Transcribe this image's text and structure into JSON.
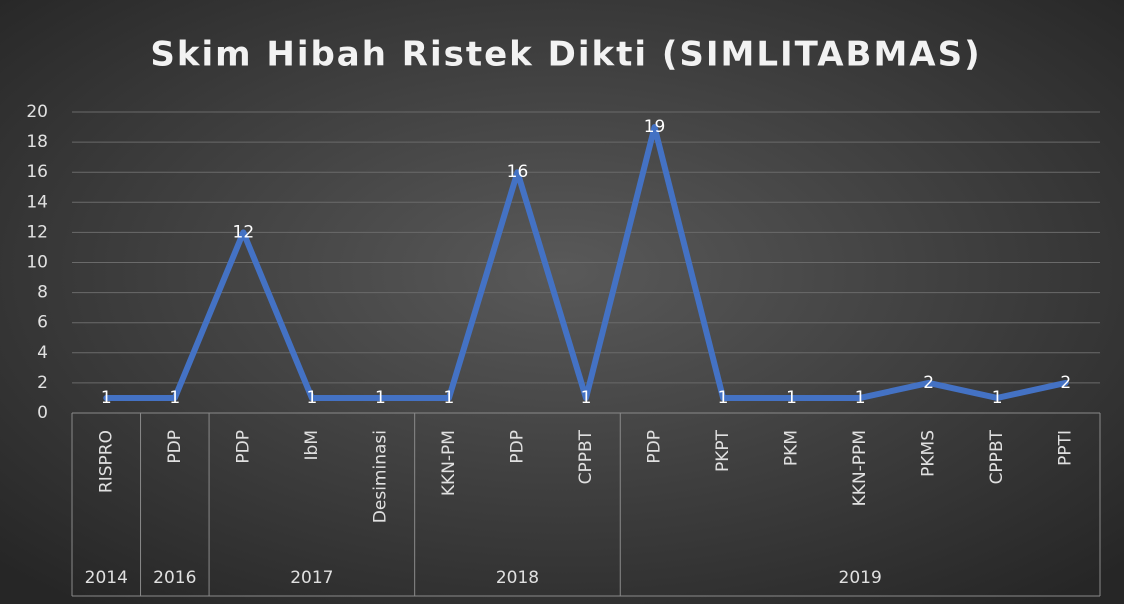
{
  "chart_data": {
    "type": "line",
    "title": "Skim Hibah Ristek Dikti (SIMLITABMAS)",
    "categories": [
      "RISPRO",
      "PDP",
      "PDP",
      "IbM",
      "Desiminasi",
      "KKN-PM",
      "PDP",
      "CPPBT",
      "PDP",
      "PKPT",
      "PKM",
      "KKN-PPM",
      "PKMS",
      "CPPBT",
      "PPTI"
    ],
    "x_groups": [
      {
        "label": "2014",
        "span": 1
      },
      {
        "label": "2016",
        "span": 1
      },
      {
        "label": "2017",
        "span": 3
      },
      {
        "label": "2018",
        "span": 3
      },
      {
        "label": "2019",
        "span": 7
      }
    ],
    "values": [
      1,
      1,
      12,
      1,
      1,
      1,
      16,
      1,
      19,
      1,
      1,
      1,
      2,
      1,
      2
    ],
    "color": "#4472c4",
    "ylim": [
      0,
      20
    ],
    "yticks": [
      0,
      2,
      4,
      6,
      8,
      10,
      12,
      14,
      16,
      18,
      20
    ],
    "grid": true
  }
}
